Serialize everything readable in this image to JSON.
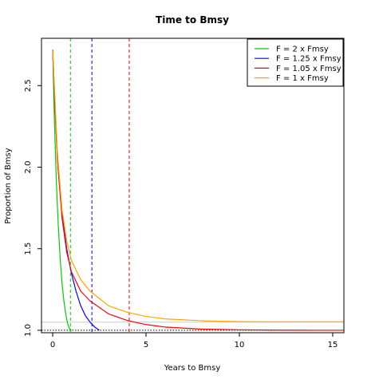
{
  "chart_data": {
    "type": "line",
    "title": "Time to Bmsy",
    "xlabel": "Years to Bmsy",
    "ylabel": "Proportion of Bmsy",
    "xlim": [
      -0.6,
      15.6
    ],
    "ylim": [
      0.985,
      2.79
    ],
    "xticks": [
      0,
      5,
      10,
      15
    ],
    "yticks": [
      1.0,
      1.5,
      2.0,
      2.5
    ],
    "xtick_labels": [
      "0",
      "5",
      "10",
      "15"
    ],
    "ytick_labels": [
      "1.0",
      "1.5",
      "2.0",
      "2.5"
    ],
    "legend_position": "top-right",
    "grid": false,
    "series": [
      {
        "name": "F = 2 x Fmsy",
        "color": "#00cc00",
        "x": [
          0,
          0.05,
          0.1,
          0.2,
          0.3,
          0.4,
          0.5,
          0.6,
          0.7,
          0.8,
          0.9,
          1.0
        ],
        "y": [
          2.72,
          2.48,
          2.25,
          1.9,
          1.64,
          1.44,
          1.29,
          1.18,
          1.1,
          1.04,
          1.01,
          1.0
        ],
        "vline_x": 0.95
      },
      {
        "name": "F = 1.25 x Fmsy",
        "color": "#0000ff",
        "x": [
          0,
          0.1,
          0.2,
          0.3,
          0.5,
          0.75,
          1.0,
          1.25,
          1.5,
          1.75,
          2.0,
          2.25,
          2.5
        ],
        "y": [
          2.72,
          2.42,
          2.18,
          1.98,
          1.71,
          1.5,
          1.35,
          1.24,
          1.15,
          1.09,
          1.05,
          1.02,
          1.0
        ],
        "vline_x": 2.1
      },
      {
        "name": "F = 1.05 x Fmsy",
        "color": "#ff0000",
        "x": [
          0,
          0.25,
          0.5,
          0.75,
          1.0,
          1.5,
          2.0,
          3.0,
          4.0,
          5.0,
          6.0,
          8.0,
          10.0,
          12.0,
          14.0,
          15.6
        ],
        "y": [
          2.72,
          2.05,
          1.69,
          1.48,
          1.36,
          1.24,
          1.18,
          1.1,
          1.06,
          1.035,
          1.02,
          1.007,
          1.003,
          1.001,
          1.0,
          1.0
        ],
        "vline_x": 4.1
      },
      {
        "name": "F = 1 x Fmsy",
        "color": "#ffa500",
        "x": [
          0,
          0.25,
          0.5,
          0.75,
          1.0,
          1.5,
          2.0,
          3.0,
          4.0,
          5.0,
          6.0,
          8.0,
          10.0,
          12.0,
          14.0,
          15.6
        ],
        "y": [
          2.72,
          2.09,
          1.74,
          1.55,
          1.43,
          1.31,
          1.24,
          1.15,
          1.11,
          1.085,
          1.07,
          1.058,
          1.053,
          1.052,
          1.052,
          1.052
        ],
        "vline_x": null
      }
    ],
    "hlines": [
      {
        "y": 1.0,
        "color": "#000000",
        "style": "dotted"
      },
      {
        "y": 1.05,
        "color": "#cccccc",
        "style": "solid"
      }
    ]
  }
}
